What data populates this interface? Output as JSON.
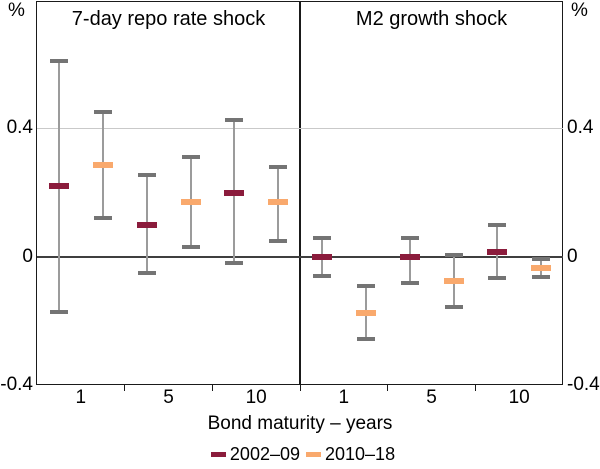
{
  "figure": {
    "xlabel": "Bond maturity – years"
  },
  "y_axis": {
    "unit": "%",
    "tick_labels": [
      "0.4",
      "0",
      "-0.4"
    ],
    "tick_values": [
      0.4,
      0,
      -0.4
    ],
    "ylim": [
      -0.4,
      0.8
    ],
    "gridlines": [
      0.4
    ],
    "zero_line_value": 0
  },
  "legend": [
    {
      "label": "2002–09",
      "color": "#8B1C3C"
    },
    {
      "label": "2010–18",
      "color": "#F9A96D"
    }
  ],
  "colors": {
    "series_2002_09": "#8B1C3C",
    "series_2010_18": "#F9A96D",
    "whisker": "#9B9B9B",
    "whisker_cap": "#747474",
    "gridline": "#C9C9C9",
    "zero_line": "#3F3F3F",
    "frame": "#1A1A1A",
    "background": "#FFFFFF"
  },
  "chart_data": [
    {
      "type": "errorbar",
      "panel": "left",
      "title": "7-day repo rate shock",
      "categories": [
        "1",
        "5",
        "10"
      ],
      "series": [
        {
          "name": "2002–09",
          "color": "#8B1C3C",
          "centers": [
            0.22,
            0.1,
            0.2
          ],
          "ci_low": [
            -0.17,
            -0.05,
            -0.02
          ],
          "ci_high": [
            0.61,
            0.255,
            0.425
          ]
        },
        {
          "name": "2010–18",
          "color": "#F9A96D",
          "centers": [
            0.285,
            0.17,
            0.17
          ],
          "ci_low": [
            0.12,
            0.03,
            0.05
          ],
          "ci_high": [
            0.45,
            0.31,
            0.28
          ]
        }
      ]
    },
    {
      "type": "errorbar",
      "panel": "right",
      "title": "M2 growth shock",
      "categories": [
        "1",
        "5",
        "10"
      ],
      "series": [
        {
          "name": "2002–09",
          "color": "#8B1C3C",
          "centers": [
            0.0,
            0.0,
            0.015
          ],
          "ci_low": [
            -0.06,
            -0.08,
            -0.065
          ],
          "ci_high": [
            0.06,
            0.06,
            0.1
          ]
        },
        {
          "name": "2010–18",
          "color": "#F9A96D",
          "centers": [
            -0.175,
            -0.075,
            -0.033
          ],
          "ci_low": [
            -0.255,
            -0.155,
            -0.062
          ],
          "ci_high": [
            -0.09,
            0.005,
            -0.005
          ]
        }
      ]
    }
  ]
}
